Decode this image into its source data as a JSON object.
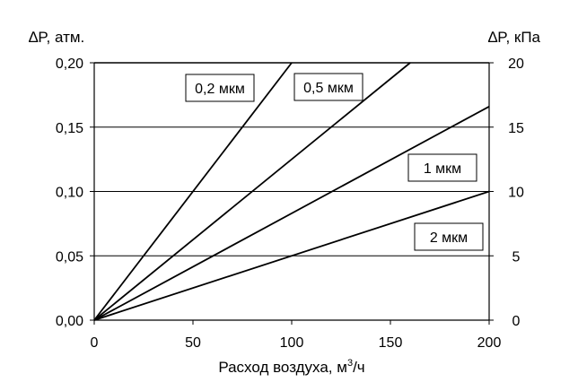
{
  "chart_data": {
    "type": "line",
    "xlabel_main": "Расход воздуха, м",
    "xlabel_sup": "3",
    "xlabel_tail": "/ч",
    "ylabel_left": "∆P, атм.",
    "ylabel_right": "∆P, кПа",
    "xlim": [
      0,
      200
    ],
    "ylim_left": [
      0,
      0.2
    ],
    "ylim_right": [
      0,
      20
    ],
    "x_ticks": [
      "0",
      "50",
      "100",
      "150",
      "200"
    ],
    "y_ticks_left": [
      "0,00",
      "0,05",
      "0,10",
      "0,15",
      "0,20"
    ],
    "y_ticks_right": [
      "0",
      "5",
      "10",
      "15",
      "20"
    ],
    "grid": true,
    "series": [
      {
        "name": "0,2 мкм",
        "x": [
          0,
          100
        ],
        "y": [
          0,
          0.2
        ]
      },
      {
        "name": "0,5 мкм",
        "x": [
          0,
          160
        ],
        "y": [
          0,
          0.2
        ]
      },
      {
        "name": "1 мкм",
        "x": [
          0,
          200
        ],
        "y": [
          0,
          0.166
        ]
      },
      {
        "name": "2 мкм",
        "x": [
          0,
          200
        ],
        "y": [
          0,
          0.1
        ]
      }
    ]
  }
}
